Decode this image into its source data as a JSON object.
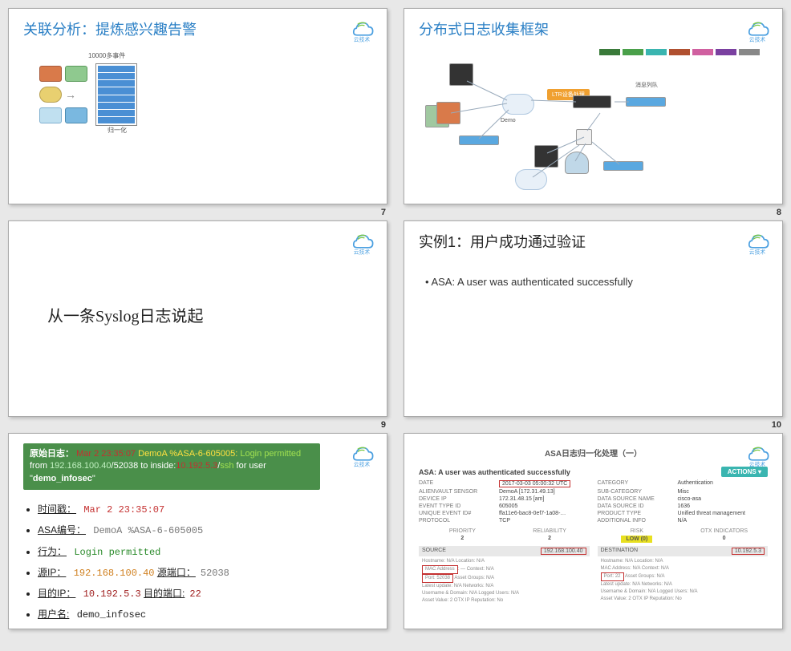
{
  "logo": {
    "text": "云技术",
    "colors": {
      "cloud": "#4a9fe0",
      "wave": "#7ac943"
    }
  },
  "slides": {
    "s7": {
      "page": "7",
      "title": "关联分析：提炼感兴趣告警",
      "rack_top_label": "10000多事件",
      "rack_bottom_label": "归一化"
    },
    "s8": {
      "page": "8",
      "title": "分布式日志收集框架",
      "legend_colors": [
        "#3a7a3a",
        "#4aa04a",
        "#3ab5b0",
        "#b05030",
        "#d060a0",
        "#7a40a0",
        "#888"
      ],
      "labels": {
        "center": "LTR设备处理",
        "queue": "消息列队",
        "demo": "Demo"
      }
    },
    "s9": {
      "page": "9",
      "title": "从一条Syslog日志说起"
    },
    "s10": {
      "page": "10",
      "title": "实例1：用户成功通过验证",
      "bullet": "• ASA:  A user was authenticated successfully"
    },
    "s11": {
      "page": "",
      "log": {
        "label": "原始日志：",
        "timestamp": "Mar 2 23:35:07",
        "host": "DemoA %ASA-6-605005:",
        "action": "Login permitted",
        "from_text": "from",
        "src_ip": "192.168.100.40",
        "slash": "/",
        "src_port": "52038",
        "to_inside": "to inside:",
        "dst_ip": "10.192.5.3",
        "proto": "ssh",
        "for_user": "for user \"",
        "user": "demo_infosec",
        "end_quote": "\""
      },
      "rows": [
        {
          "key": "时间戳：",
          "val": "Mar 2 23:35:07",
          "cls": "c-red"
        },
        {
          "key": "ASA编号：",
          "val": "DemoA %ASA-6-605005",
          "cls": "c-grey"
        },
        {
          "key": "行为：",
          "val": "Login permitted",
          "cls": "c-green"
        },
        {
          "key": "源IP：",
          "val": "192.168.100.40",
          "cls": "c-orange",
          "extra_key": "源端口：",
          "extra_val": "52038",
          "extra_cls": "c-grey"
        },
        {
          "key": "目的IP：",
          "val": "10.192.5.3",
          "cls": "c-dred",
          "extra_key": "目的端口:",
          "extra_val": "22",
          "extra_cls": "c-dred"
        },
        {
          "key": "用户名:",
          "val": "demo_infosec",
          "cls": ""
        }
      ]
    },
    "s12": {
      "title": "ASA日志归一化处理（一）",
      "headline": "ASA: A user was authenticated successfully",
      "actions": "ACTIONS ▾",
      "date_boxed": "2017-03-03 05:00:32 UTC",
      "left": [
        {
          "k": "DATE",
          "v": ""
        },
        {
          "k": "ALIENVAULT SENSOR",
          "v": "DemoA [172.31.49.13]"
        },
        {
          "k": "DEVICE IP",
          "v": "172.31.48.15 [am]"
        },
        {
          "k": "EVENT TYPE ID",
          "v": "605005"
        },
        {
          "k": "UNIQUE EVENT ID#",
          "v": "ffa11e6-bac8-0ef7-1a08-…"
        },
        {
          "k": "PROTOCOL",
          "v": "TCP"
        }
      ],
      "right": [
        {
          "k": "CATEGORY",
          "v": "Authentication"
        },
        {
          "k": "SUB-CATEGORY",
          "v": "Misc"
        },
        {
          "k": "DATA SOURCE NAME",
          "v": "cisco-asa"
        },
        {
          "k": "DATA SOURCE ID",
          "v": "1636"
        },
        {
          "k": "PRODUCT TYPE",
          "v": "Unified threat management"
        },
        {
          "k": "ADDITIONAL INFO",
          "v": "N/A"
        }
      ],
      "metrics": [
        {
          "h": "PRIORITY",
          "v": "2"
        },
        {
          "h": "RELIABILITY",
          "v": "2"
        },
        {
          "h": "RISK",
          "v": "LOW (0)",
          "risk": true
        },
        {
          "h": "OTX INDICATORS",
          "v": "0"
        }
      ],
      "source": {
        "head": "SOURCE",
        "ip_boxed": "192.168.100.40",
        "lines": [
          "Hostname: N/A    Location: N/A",
          "MAC Address: —    Context: N/A",
          "Port: 52038    Asset Groups: N/A",
          "Latest update: N/A    Networks: N/A",
          "Username & Domain: N/A    Logged Users: N/A",
          "Asset Value: 2    OTX IP Reputation: No"
        ]
      },
      "destination": {
        "head": "DESTINATION",
        "ip_boxed": "10.192.5.3",
        "lines": [
          "Hostname: N/A    Location: N/A",
          "MAC Address: N/A    Context: N/A",
          "Port: 22    Asset Groups: N/A",
          "Latest update: N/A    Networks: N/A",
          "Username & Domain: N/A    Logged Users: N/A",
          "Asset Value: 2    OTX IP Reputation: No"
        ]
      }
    }
  }
}
